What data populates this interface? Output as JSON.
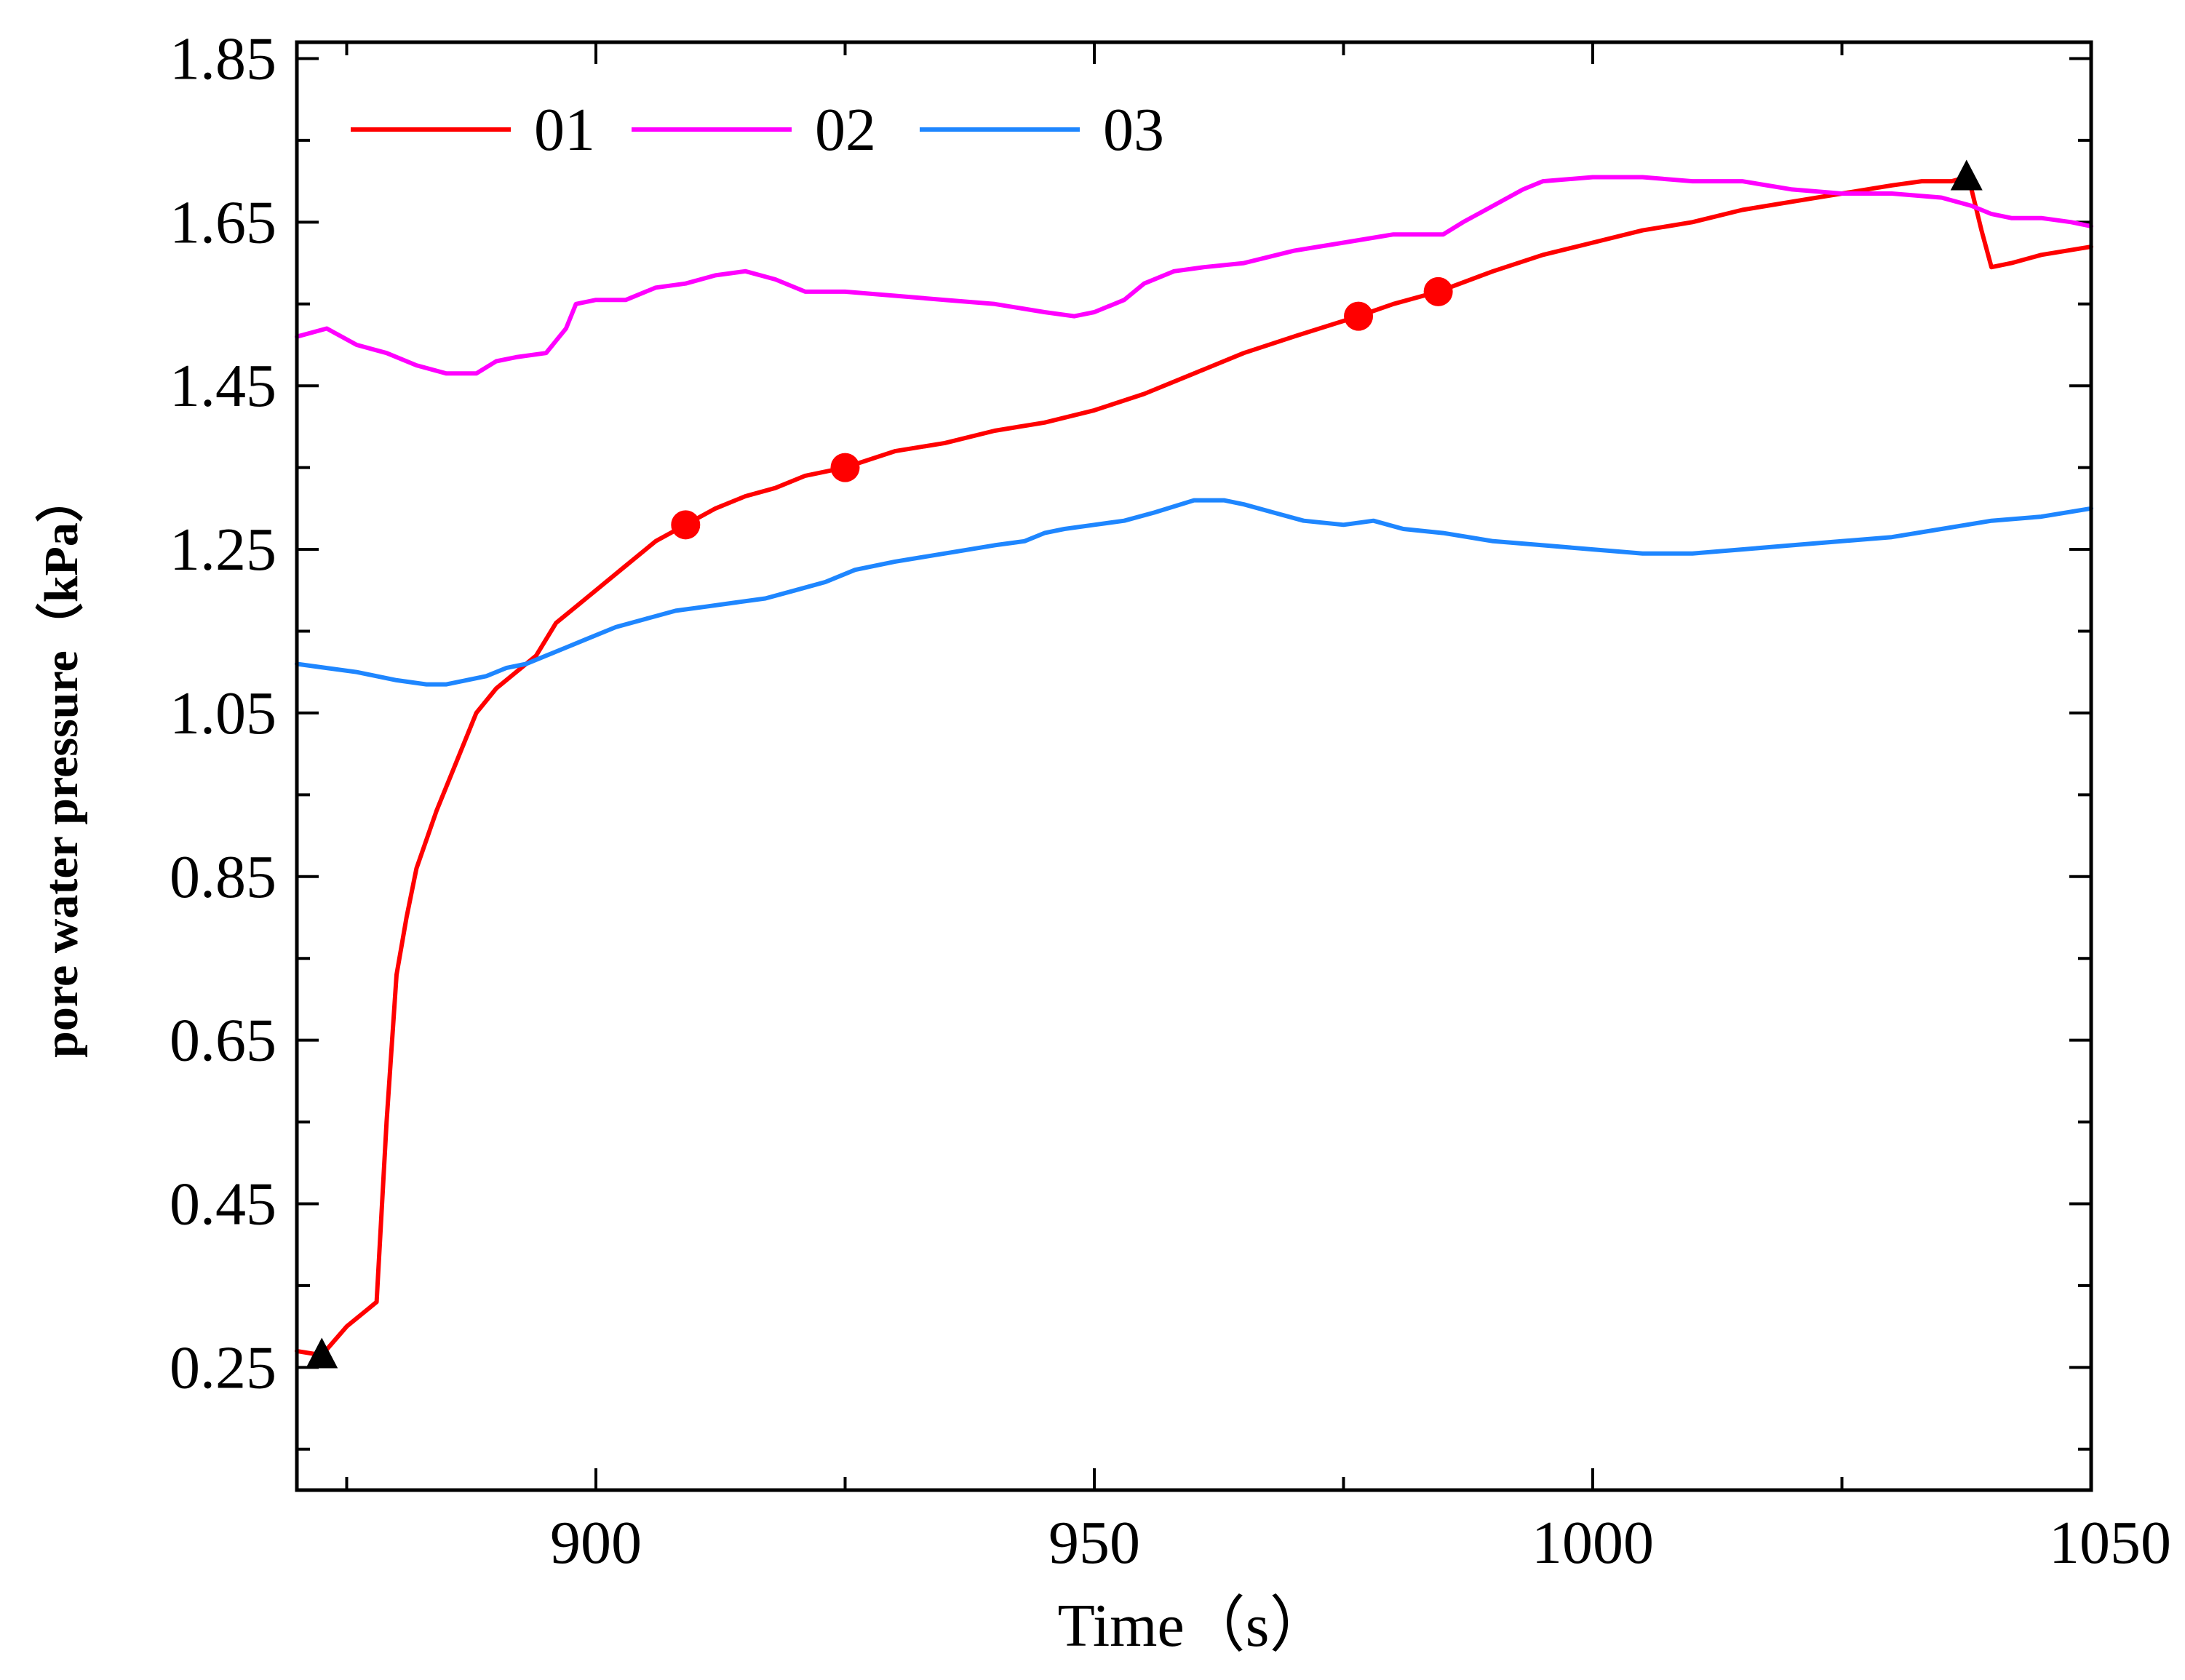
{
  "chart_data": {
    "type": "line",
    "title": "",
    "xlabel": "Time（s）",
    "ylabel": "pore water pressure（kPa）",
    "xlim": [
      870,
      1050
    ],
    "ylim": [
      0.1,
      1.87
    ],
    "xticks": [
      900,
      950,
      1000,
      1050
    ],
    "xtick_labels": [
      "900",
      "950",
      "1000",
      "1050"
    ],
    "yticks": [
      0.25,
      0.45,
      0.65,
      0.85,
      1.05,
      1.25,
      1.45,
      1.65,
      1.85
    ],
    "ytick_labels": [
      "0.25",
      "0.45",
      "0.65",
      "0.85",
      "1.05",
      "1.25",
      "1.45",
      "1.65",
      "1.85"
    ],
    "grid": false,
    "legend_position": "top-left",
    "series": [
      {
        "name": "01",
        "color": "#ff0000",
        "x": [
          870,
          872.5,
          875,
          877,
          878,
          879,
          880,
          881,
          882,
          884,
          886,
          888,
          890,
          892,
          894,
          896,
          898,
          900,
          903,
          906,
          909,
          912,
          915,
          918,
          921,
          925,
          930,
          935,
          940,
          945,
          950,
          955,
          960,
          965,
          970,
          976.5,
          980,
          984.5,
          990,
          995,
          1000,
          1005,
          1010,
          1015,
          1020,
          1025,
          1030,
          1033,
          1036,
          1037.5,
          1038,
          1039,
          1040,
          1042,
          1045,
          1050
        ],
        "y": [
          0.27,
          0.265,
          0.3,
          0.32,
          0.33,
          0.55,
          0.73,
          0.8,
          0.86,
          0.93,
          0.99,
          1.05,
          1.08,
          1.1,
          1.12,
          1.16,
          1.18,
          1.2,
          1.23,
          1.26,
          1.28,
          1.3,
          1.315,
          1.325,
          1.34,
          1.35,
          1.37,
          1.38,
          1.395,
          1.405,
          1.42,
          1.44,
          1.465,
          1.49,
          1.51,
          1.535,
          1.55,
          1.565,
          1.59,
          1.61,
          1.625,
          1.64,
          1.65,
          1.665,
          1.675,
          1.685,
          1.695,
          1.7,
          1.7,
          1.705,
          1.69,
          1.64,
          1.595,
          1.6,
          1.61,
          1.62
        ]
      },
      {
        "name": "02",
        "color": "#ff00ff",
        "x": [
          870,
          873,
          876,
          879,
          882,
          885,
          888,
          890,
          892,
          895,
          897,
          898,
          900,
          903,
          906,
          909,
          912,
          915,
          918,
          921,
          925,
          930,
          935,
          940,
          945,
          948,
          950,
          953,
          955,
          958,
          961,
          965,
          970,
          975,
          980,
          985,
          987,
          990,
          993,
          995,
          1000,
          1005,
          1010,
          1015,
          1020,
          1025,
          1030,
          1035,
          1038,
          1040,
          1042,
          1045,
          1048,
          1050
        ],
        "y": [
          1.51,
          1.52,
          1.5,
          1.49,
          1.475,
          1.465,
          1.465,
          1.48,
          1.485,
          1.49,
          1.52,
          1.55,
          1.555,
          1.555,
          1.57,
          1.575,
          1.585,
          1.59,
          1.58,
          1.565,
          1.565,
          1.56,
          1.555,
          1.55,
          1.54,
          1.535,
          1.54,
          1.555,
          1.575,
          1.59,
          1.595,
          1.6,
          1.615,
          1.625,
          1.635,
          1.635,
          1.65,
          1.67,
          1.69,
          1.7,
          1.705,
          1.705,
          1.7,
          1.7,
          1.69,
          1.685,
          1.685,
          1.68,
          1.67,
          1.66,
          1.655,
          1.655,
          1.65,
          1.645
        ]
      },
      {
        "name": "03",
        "color": "#1e86ff",
        "x": [
          870,
          873,
          876,
          878,
          880,
          883,
          885,
          887,
          889,
          891,
          893,
          895,
          897,
          899,
          902,
          905,
          908,
          911,
          914,
          917,
          920,
          923,
          926,
          930,
          935,
          940,
          943,
          945,
          947,
          950,
          953,
          956,
          960,
          963,
          965,
          968,
          971,
          975,
          978,
          981,
          985,
          990,
          995,
          1000,
          1005,
          1010,
          1015,
          1020,
          1025,
          1030,
          1035,
          1040,
          1045,
          1050
        ],
        "y": [
          1.11,
          1.105,
          1.1,
          1.095,
          1.09,
          1.085,
          1.085,
          1.09,
          1.095,
          1.105,
          1.11,
          1.12,
          1.13,
          1.14,
          1.155,
          1.165,
          1.175,
          1.18,
          1.185,
          1.19,
          1.2,
          1.21,
          1.225,
          1.235,
          1.245,
          1.255,
          1.26,
          1.27,
          1.275,
          1.28,
          1.285,
          1.295,
          1.31,
          1.31,
          1.305,
          1.295,
          1.285,
          1.28,
          1.285,
          1.275,
          1.27,
          1.26,
          1.255,
          1.25,
          1.245,
          1.245,
          1.25,
          1.255,
          1.26,
          1.265,
          1.275,
          1.285,
          1.29,
          1.3
        ]
      }
    ],
    "markers": [
      {
        "series": "01",
        "shape": "triangle",
        "color": "#000000",
        "points": [
          [
            872.5,
            0.265
          ],
          [
            1037.5,
            1.705
          ]
        ]
      },
      {
        "series": "01",
        "shape": "circle",
        "color": "#ff0000",
        "points": [
          [
            909,
            1.28
          ],
          [
            925,
            1.35
          ],
          [
            976.5,
            1.535
          ],
          [
            984.5,
            1.565
          ]
        ]
      }
    ]
  }
}
